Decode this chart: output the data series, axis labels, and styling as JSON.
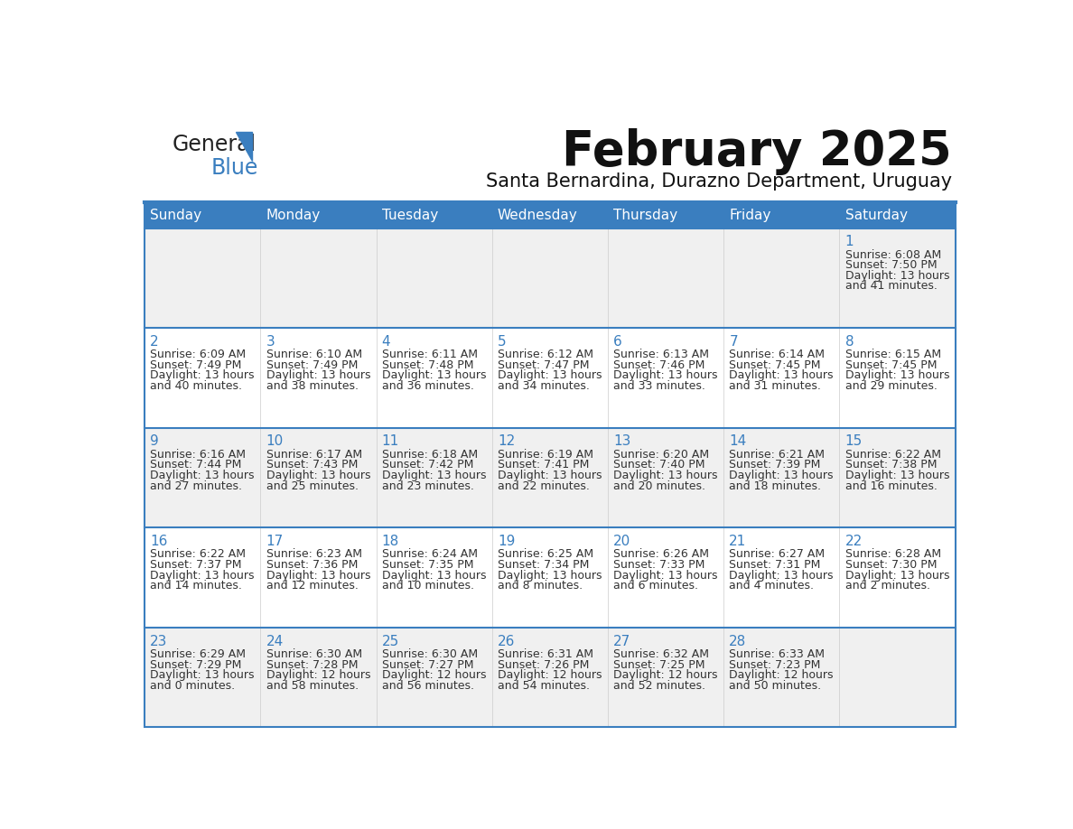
{
  "title": "February 2025",
  "subtitle": "Santa Bernardina, Durazno Department, Uruguay",
  "header_bg": "#3a7ebf",
  "header_text_color": "#ffffff",
  "cell_bg_row0": "#f0f0f0",
  "cell_bg_row1": "#ffffff",
  "border_color": "#3a7ebf",
  "day_number_color": "#3a7ebf",
  "cell_text_color": "#333333",
  "separator_color": "#3a7ebf",
  "days_of_week": [
    "Sunday",
    "Monday",
    "Tuesday",
    "Wednesday",
    "Thursday",
    "Friday",
    "Saturday"
  ],
  "weeks": [
    [
      {
        "day": "",
        "sunrise": "",
        "sunset": "",
        "daylight_h": "",
        "daylight_m": ""
      },
      {
        "day": "",
        "sunrise": "",
        "sunset": "",
        "daylight_h": "",
        "daylight_m": ""
      },
      {
        "day": "",
        "sunrise": "",
        "sunset": "",
        "daylight_h": "",
        "daylight_m": ""
      },
      {
        "day": "",
        "sunrise": "",
        "sunset": "",
        "daylight_h": "",
        "daylight_m": ""
      },
      {
        "day": "",
        "sunrise": "",
        "sunset": "",
        "daylight_h": "",
        "daylight_m": ""
      },
      {
        "day": "",
        "sunrise": "",
        "sunset": "",
        "daylight_h": "",
        "daylight_m": ""
      },
      {
        "day": "1",
        "sunrise": "6:08 AM",
        "sunset": "7:50 PM",
        "daylight_h": "13",
        "daylight_m": "41"
      }
    ],
    [
      {
        "day": "2",
        "sunrise": "6:09 AM",
        "sunset": "7:49 PM",
        "daylight_h": "13",
        "daylight_m": "40"
      },
      {
        "day": "3",
        "sunrise": "6:10 AM",
        "sunset": "7:49 PM",
        "daylight_h": "13",
        "daylight_m": "38"
      },
      {
        "day": "4",
        "sunrise": "6:11 AM",
        "sunset": "7:48 PM",
        "daylight_h": "13",
        "daylight_m": "36"
      },
      {
        "day": "5",
        "sunrise": "6:12 AM",
        "sunset": "7:47 PM",
        "daylight_h": "13",
        "daylight_m": "34"
      },
      {
        "day": "6",
        "sunrise": "6:13 AM",
        "sunset": "7:46 PM",
        "daylight_h": "13",
        "daylight_m": "33"
      },
      {
        "day": "7",
        "sunrise": "6:14 AM",
        "sunset": "7:45 PM",
        "daylight_h": "13",
        "daylight_m": "31"
      },
      {
        "day": "8",
        "sunrise": "6:15 AM",
        "sunset": "7:45 PM",
        "daylight_h": "13",
        "daylight_m": "29"
      }
    ],
    [
      {
        "day": "9",
        "sunrise": "6:16 AM",
        "sunset": "7:44 PM",
        "daylight_h": "13",
        "daylight_m": "27"
      },
      {
        "day": "10",
        "sunrise": "6:17 AM",
        "sunset": "7:43 PM",
        "daylight_h": "13",
        "daylight_m": "25"
      },
      {
        "day": "11",
        "sunrise": "6:18 AM",
        "sunset": "7:42 PM",
        "daylight_h": "13",
        "daylight_m": "23"
      },
      {
        "day": "12",
        "sunrise": "6:19 AM",
        "sunset": "7:41 PM",
        "daylight_h": "13",
        "daylight_m": "22"
      },
      {
        "day": "13",
        "sunrise": "6:20 AM",
        "sunset": "7:40 PM",
        "daylight_h": "13",
        "daylight_m": "20"
      },
      {
        "day": "14",
        "sunrise": "6:21 AM",
        "sunset": "7:39 PM",
        "daylight_h": "13",
        "daylight_m": "18"
      },
      {
        "day": "15",
        "sunrise": "6:22 AM",
        "sunset": "7:38 PM",
        "daylight_h": "13",
        "daylight_m": "16"
      }
    ],
    [
      {
        "day": "16",
        "sunrise": "6:22 AM",
        "sunset": "7:37 PM",
        "daylight_h": "13",
        "daylight_m": "14"
      },
      {
        "day": "17",
        "sunrise": "6:23 AM",
        "sunset": "7:36 PM",
        "daylight_h": "13",
        "daylight_m": "12"
      },
      {
        "day": "18",
        "sunrise": "6:24 AM",
        "sunset": "7:35 PM",
        "daylight_h": "13",
        "daylight_m": "10"
      },
      {
        "day": "19",
        "sunrise": "6:25 AM",
        "sunset": "7:34 PM",
        "daylight_h": "13",
        "daylight_m": "8"
      },
      {
        "day": "20",
        "sunrise": "6:26 AM",
        "sunset": "7:33 PM",
        "daylight_h": "13",
        "daylight_m": "6"
      },
      {
        "day": "21",
        "sunrise": "6:27 AM",
        "sunset": "7:31 PM",
        "daylight_h": "13",
        "daylight_m": "4"
      },
      {
        "day": "22",
        "sunrise": "6:28 AM",
        "sunset": "7:30 PM",
        "daylight_h": "13",
        "daylight_m": "2"
      }
    ],
    [
      {
        "day": "23",
        "sunrise": "6:29 AM",
        "sunset": "7:29 PM",
        "daylight_h": "13",
        "daylight_m": "0"
      },
      {
        "day": "24",
        "sunrise": "6:30 AM",
        "sunset": "7:28 PM",
        "daylight_h": "12",
        "daylight_m": "58"
      },
      {
        "day": "25",
        "sunrise": "6:30 AM",
        "sunset": "7:27 PM",
        "daylight_h": "12",
        "daylight_m": "56"
      },
      {
        "day": "26",
        "sunrise": "6:31 AM",
        "sunset": "7:26 PM",
        "daylight_h": "12",
        "daylight_m": "54"
      },
      {
        "day": "27",
        "sunrise": "6:32 AM",
        "sunset": "7:25 PM",
        "daylight_h": "12",
        "daylight_m": "52"
      },
      {
        "day": "28",
        "sunrise": "6:33 AM",
        "sunset": "7:23 PM",
        "daylight_h": "12",
        "daylight_m": "50"
      },
      {
        "day": "",
        "sunrise": "",
        "sunset": "",
        "daylight_h": "",
        "daylight_m": ""
      }
    ]
  ],
  "background_color": "#ffffff",
  "title_fontsize": 38,
  "subtitle_fontsize": 15,
  "header_fontsize": 11,
  "day_num_fontsize": 11,
  "cell_fontsize": 9
}
